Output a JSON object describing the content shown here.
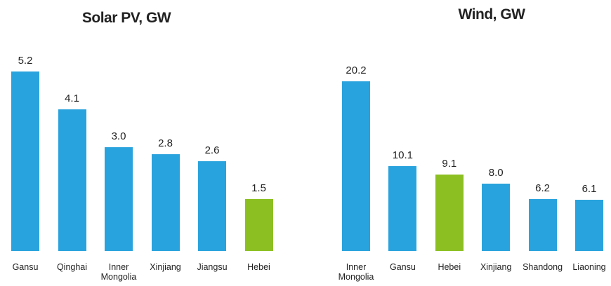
{
  "chart_data": [
    {
      "type": "bar",
      "title": "Solar PV, GW",
      "categories": [
        "Gansu",
        "Qinghai",
        "Inner Mongolia",
        "Xinjiang",
        "Jiangsu",
        "Hebei"
      ],
      "values": [
        5.2,
        4.1,
        3.0,
        2.8,
        2.6,
        1.5
      ],
      "value_labels": [
        "5.2",
        "4.1",
        "3.0",
        "2.8",
        "2.6",
        "1.5"
      ],
      "colors": [
        "#29a3dd",
        "#29a3dd",
        "#29a3dd",
        "#29a3dd",
        "#29a3dd",
        "#8cc022"
      ]
    },
    {
      "type": "bar",
      "title": "Wind, GW",
      "categories": [
        "Inner Mongolia",
        "Gansu",
        "Hebei",
        "Xinjiang",
        "Shandong",
        "Liaoning"
      ],
      "values": [
        20.2,
        10.1,
        9.1,
        8.0,
        6.2,
        6.1
      ],
      "value_labels": [
        "20.2",
        "10.1",
        "9.1",
        "8.0",
        "6.2",
        "6.1"
      ],
      "colors": [
        "#29a3dd",
        "#29a3dd",
        "#8cc022",
        "#29a3dd",
        "#29a3dd",
        "#29a3dd"
      ]
    }
  ]
}
